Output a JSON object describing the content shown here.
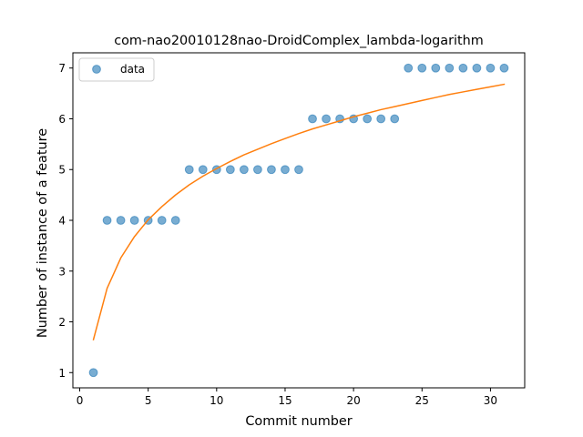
{
  "chart_data": {
    "type": "scatter",
    "title": "com-nao20010128nao-DroidComplex_lambda-logarithm",
    "xlabel": "Commit number",
    "ylabel": "Number of instance of a feature",
    "xlim": [
      -0.5,
      32.5
    ],
    "ylim": [
      0.7,
      7.3
    ],
    "x_ticks": [
      0,
      5,
      10,
      15,
      20,
      25,
      30
    ],
    "y_ticks": [
      1,
      2,
      3,
      4,
      5,
      6,
      7
    ],
    "grid": false,
    "legend_position": "top-left",
    "series": [
      {
        "name": "data",
        "kind": "scatter",
        "color": "#1f77b4",
        "x": [
          1,
          2,
          3,
          4,
          5,
          6,
          7,
          8,
          9,
          10,
          11,
          12,
          13,
          14,
          15,
          16,
          17,
          18,
          19,
          20,
          21,
          22,
          23,
          24,
          25,
          26,
          27,
          28,
          29,
          30,
          31
        ],
        "y": [
          1,
          4,
          4,
          4,
          4,
          4,
          4,
          5,
          5,
          5,
          5,
          5,
          5,
          5,
          5,
          5,
          6,
          6,
          6,
          6,
          6,
          6,
          6,
          7,
          7,
          7,
          7,
          7,
          7,
          7,
          7
        ]
      },
      {
        "name": "fit",
        "kind": "line",
        "color": "#ff7f0e",
        "in_legend": false,
        "x": [
          1,
          2,
          3,
          4,
          5,
          6,
          7,
          8,
          9,
          10,
          11,
          12,
          13,
          14,
          15,
          16,
          17,
          18,
          19,
          20,
          21,
          22,
          23,
          24,
          25,
          26,
          27,
          28,
          29,
          30,
          31
        ],
        "y": [
          1.65,
          2.66,
          3.26,
          3.68,
          4.01,
          4.27,
          4.5,
          4.7,
          4.87,
          5.02,
          5.16,
          5.29,
          5.4,
          5.51,
          5.61,
          5.71,
          5.8,
          5.88,
          5.96,
          6.04,
          6.11,
          6.18,
          6.24,
          6.3,
          6.36,
          6.42,
          6.48,
          6.53,
          6.58,
          6.63,
          6.68
        ]
      }
    ]
  }
}
